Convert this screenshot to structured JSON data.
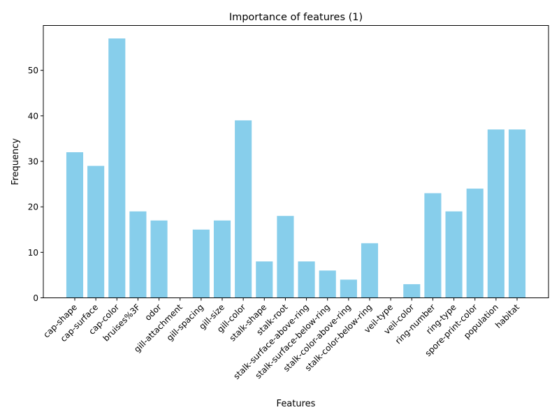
{
  "chart_data": {
    "type": "bar",
    "title": "Importance of features (1)",
    "xlabel": "Features",
    "ylabel": "Frequency",
    "ylim": [
      0,
      59.85
    ],
    "yticks": [
      0,
      10,
      20,
      30,
      40,
      50
    ],
    "grid": false,
    "bar_color": "#87ceeb",
    "categories": [
      "cap-shape",
      "cap-surface",
      "cap-color",
      "bruises%3F",
      "odor",
      "gill-attachment",
      "gill-spacing",
      "gill-size",
      "gill-color",
      "stalk-shape",
      "stalk-root",
      "stalk-surface-above-ring",
      "stalk-surface-below-ring",
      "stalk-color-above-ring",
      "stalk-color-below-ring",
      "veil-type",
      "veil-color",
      "ring-number",
      "ring-type",
      "spore-print-color",
      "population",
      "habitat"
    ],
    "values": [
      32,
      29,
      57,
      19,
      17,
      0,
      15,
      17,
      39,
      8,
      18,
      8,
      6,
      4,
      12,
      0,
      3,
      23,
      19,
      24,
      37,
      37
    ]
  }
}
